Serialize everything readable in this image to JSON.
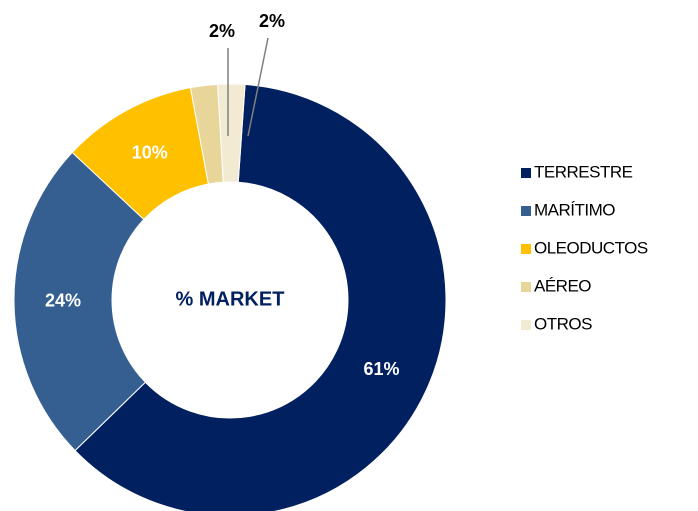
{
  "chart_data": {
    "type": "donut",
    "center_label": "% MARKET",
    "categories": [
      "TERRESTRE",
      "MARÍTIMO",
      "OLEODUCTOS",
      "AÉREO",
      "OTROS"
    ],
    "values": [
      61,
      24,
      10,
      2,
      2
    ],
    "value_labels": [
      "61%",
      "24%",
      "10%",
      "2%",
      "2%"
    ],
    "colors": [
      "#002060",
      "#365f91",
      "#ffc000",
      "#e8d59a",
      "#f3ead2"
    ],
    "legend": "right"
  }
}
